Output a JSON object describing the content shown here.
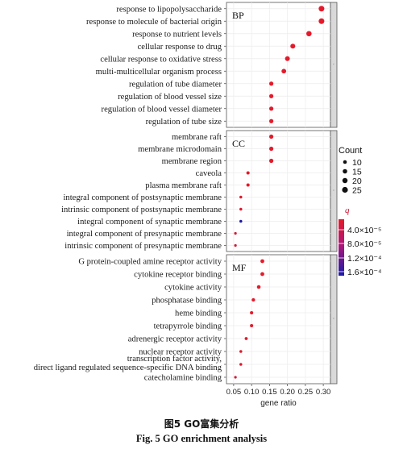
{
  "chart_data": {
    "type": "scatter",
    "xlabel": "gene ratio",
    "x_ticks": [
      "0.05",
      "0.10",
      "0.15",
      "0.20",
      "0.25",
      "0.30"
    ],
    "xlim": [
      0.03,
      0.32
    ],
    "facets": [
      {
        "name": "BP",
        "terms": [
          {
            "term": "response to lipopolysaccharide",
            "gene_ratio": 0.295,
            "count": 24,
            "q": 3.5e-05
          },
          {
            "term": "response to molecule of bacterial origin",
            "gene_ratio": 0.295,
            "count": 24,
            "q": 3.5e-05
          },
          {
            "term": "response to nutrient levels",
            "gene_ratio": 0.26,
            "count": 21,
            "q": 3.8e-05
          },
          {
            "term": "cellular response to drug",
            "gene_ratio": 0.215,
            "count": 18,
            "q": 3.8e-05
          },
          {
            "term": "cellular response to oxidative stress",
            "gene_ratio": 0.2,
            "count": 17,
            "q": 3.8e-05
          },
          {
            "term": "multi-multicellular organism process",
            "gene_ratio": 0.19,
            "count": 16,
            "q": 3.8e-05
          },
          {
            "term": "regulation of tube diameter",
            "gene_ratio": 0.155,
            "count": 13,
            "q": 3.9e-05
          },
          {
            "term": "regulation of blood vessel size",
            "gene_ratio": 0.155,
            "count": 13,
            "q": 3.9e-05
          },
          {
            "term": "regulation of blood vessel diameter",
            "gene_ratio": 0.155,
            "count": 13,
            "q": 3.9e-05
          },
          {
            "term": "regulation of tube size",
            "gene_ratio": 0.155,
            "count": 13,
            "q": 3.9e-05
          }
        ]
      },
      {
        "name": "CC",
        "terms": [
          {
            "term": "membrane raft",
            "gene_ratio": 0.155,
            "count": 13,
            "q": 3.9e-05
          },
          {
            "term": "membrane microdomain",
            "gene_ratio": 0.155,
            "count": 13,
            "q": 3.9e-05
          },
          {
            "term": "membrane region",
            "gene_ratio": 0.155,
            "count": 13,
            "q": 3.9e-05
          },
          {
            "term": "caveola",
            "gene_ratio": 0.09,
            "count": 8,
            "q": 4e-05
          },
          {
            "term": "plasma membrane raft",
            "gene_ratio": 0.09,
            "count": 8,
            "q": 4e-05
          },
          {
            "term": "integral component of postsynaptic membrane",
            "gene_ratio": 0.07,
            "count": 6,
            "q": 4.2e-05
          },
          {
            "term": "intrinsic component of postsynaptic membrane",
            "gene_ratio": 0.07,
            "count": 6,
            "q": 4.2e-05
          },
          {
            "term": "integral component of synaptic membrane",
            "gene_ratio": 0.07,
            "count": 6,
            "q": 0.000155
          },
          {
            "term": "integral component of presynaptic membrane",
            "gene_ratio": 0.055,
            "count": 5,
            "q": 4.5e-05
          },
          {
            "term": "intrinsic component of presynaptic membrane",
            "gene_ratio": 0.055,
            "count": 5,
            "q": 4.5e-05
          }
        ]
      },
      {
        "name": "MF",
        "terms": [
          {
            "term": "G protein-coupled amine receptor activity",
            "gene_ratio": 0.13,
            "count": 11,
            "q": 3.9e-05
          },
          {
            "term": "cytokine receptor binding",
            "gene_ratio": 0.13,
            "count": 11,
            "q": 3.9e-05
          },
          {
            "term": "cytokine activity",
            "gene_ratio": 0.12,
            "count": 10,
            "q": 3.9e-05
          },
          {
            "term": "phosphatase binding",
            "gene_ratio": 0.105,
            "count": 9,
            "q": 4e-05
          },
          {
            "term": "heme binding",
            "gene_ratio": 0.1,
            "count": 8,
            "q": 4e-05
          },
          {
            "term": "tetrapyrrole binding",
            "gene_ratio": 0.1,
            "count": 8,
            "q": 4e-05
          },
          {
            "term": "adrenergic receptor activity",
            "gene_ratio": 0.085,
            "count": 7,
            "q": 4.1e-05
          },
          {
            "term": "nuclear receptor activity",
            "gene_ratio": 0.07,
            "count": 6,
            "q": 4.2e-05
          },
          {
            "term": "transcription factor activity, direct ligand regulated sequence-specific DNA binding",
            "gene_ratio": 0.07,
            "count": 6,
            "q": 4.2e-05
          },
          {
            "term": "catecholamine binding",
            "gene_ratio": 0.055,
            "count": 5,
            "q": 4.5e-05
          }
        ]
      }
    ],
    "legend_count": {
      "title": "Count",
      "values": [
        "10",
        "15",
        "20",
        "25"
      ]
    },
    "legend_q": {
      "title": "q",
      "labels": [
        "4.0×10⁻⁵",
        "8.0×10⁻⁵",
        "1.2×10⁻⁴",
        "1.6×10⁻⁴"
      ],
      "range": [
        4e-05,
        0.00016
      ],
      "colors": [
        "#e41a2a",
        "#1a1aa8"
      ]
    },
    "grid": true,
    "legend_position": "right"
  },
  "caption": {
    "cn": "图5   GO富集分析",
    "en": "Fig. 5    GO enrichment analysis"
  }
}
